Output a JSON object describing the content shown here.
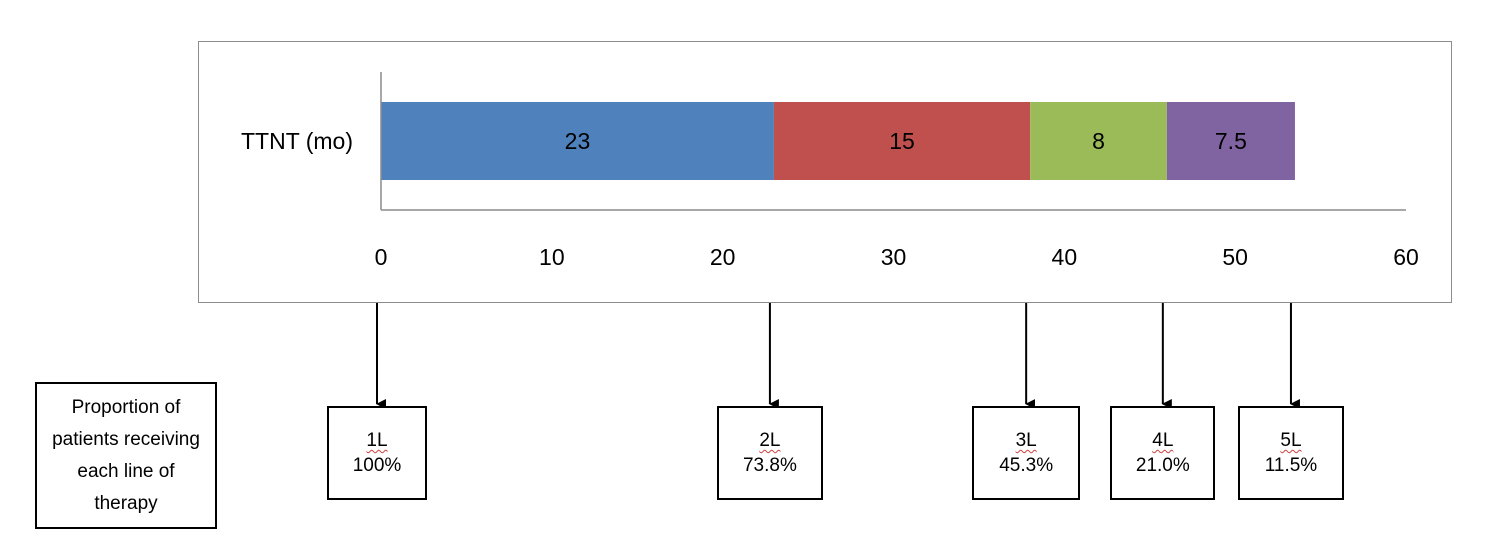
{
  "chart_data": {
    "type": "bar",
    "orientation": "horizontal",
    "stacked": true,
    "categories": [
      "TTNT (mo)"
    ],
    "series": [
      {
        "values": [
          23
        ],
        "color": "#4f81bd",
        "data_label": "23"
      },
      {
        "values": [
          15
        ],
        "color": "#c0504d",
        "data_label": "15"
      },
      {
        "values": [
          8
        ],
        "color": "#9bbb59",
        "data_label": "8"
      },
      {
        "values": [
          7.5
        ],
        "color": "#8064a2",
        "data_label": "7.5"
      }
    ],
    "xlim": [
      0,
      60
    ],
    "xticks": [
      0,
      10,
      20,
      30,
      40,
      50,
      60
    ],
    "xtick_labels": [
      "0",
      "10",
      "20",
      "30",
      "40",
      "50",
      "60"
    ],
    "grid": false,
    "legend": "none"
  },
  "annotation": {
    "title": "Proportion of patients receiving each line of therapy",
    "lines": [
      {
        "label": "1L",
        "percent": "100%",
        "x": 0
      },
      {
        "label": "2L",
        "percent": "73.8%",
        "x": 23
      },
      {
        "label": "3L",
        "percent": "45.3%",
        "x": 38
      },
      {
        "label": "4L",
        "percent": "21.0%",
        "x": 46
      },
      {
        "label": "5L",
        "percent": "11.5%",
        "x": 53.5
      }
    ]
  }
}
